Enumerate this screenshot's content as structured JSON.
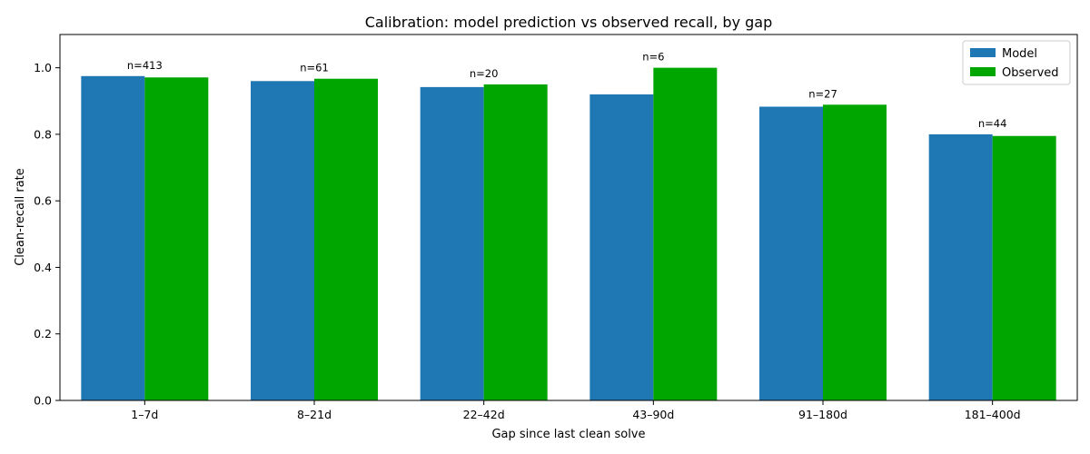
{
  "chart_data": {
    "type": "bar",
    "title": "Calibration: model prediction vs observed recall, by gap",
    "xlabel": "Gap since last clean solve",
    "ylabel": "Clean-recall rate",
    "ylim": [
      0,
      1.1
    ],
    "yticks": [
      0.0,
      0.2,
      0.4,
      0.6,
      0.8,
      1.0
    ],
    "categories": [
      "1–7d",
      "8–21d",
      "22–42d",
      "43–90d",
      "91–180d",
      "181–400d"
    ],
    "series": [
      {
        "name": "Model",
        "color": "#1f77b4",
        "values": [
          0.975,
          0.96,
          0.942,
          0.92,
          0.883,
          0.8
        ]
      },
      {
        "name": "Observed",
        "color": "#00a600",
        "values": [
          0.971,
          0.967,
          0.95,
          1.0,
          0.889,
          0.795
        ]
      }
    ],
    "annotations": [
      "n=413",
      "n=61",
      "n=20",
      "n=6",
      "n=27",
      "n=44"
    ],
    "legend": {
      "position": "top-right"
    },
    "grid": false
  }
}
